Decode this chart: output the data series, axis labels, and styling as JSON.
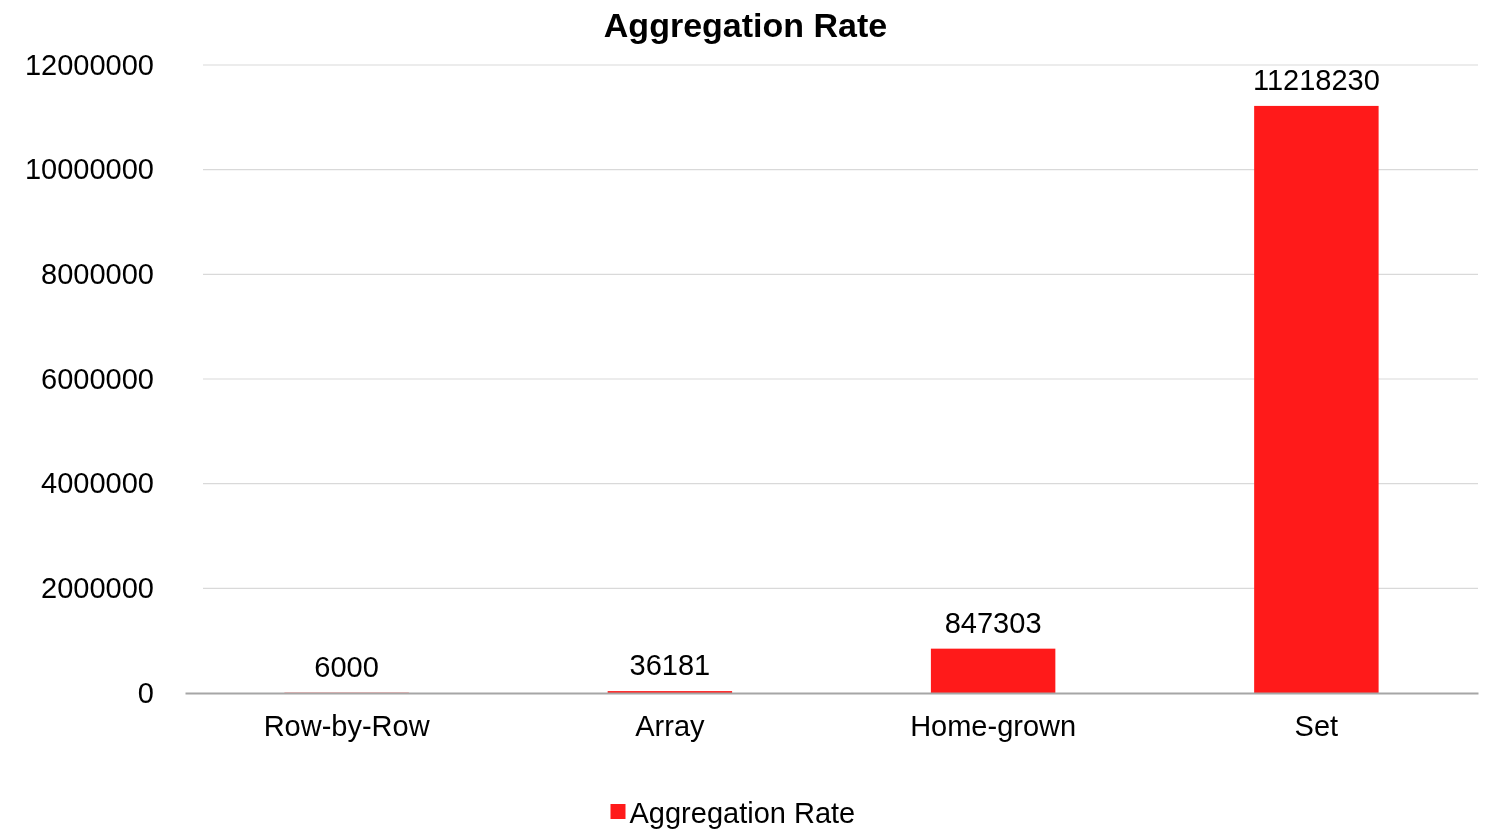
{
  "chart_data": {
    "type": "bar",
    "title": "Aggregation Rate",
    "categories": [
      "Row-by-Row",
      "Array",
      "Home-grown",
      "Set"
    ],
    "series": [
      {
        "name": "Aggregation Rate",
        "color": "#ff1a1a",
        "values": [
          6000,
          36181,
          847303,
          11218230
        ]
      }
    ],
    "ylim": [
      0,
      12000000
    ],
    "yticks": [
      0,
      2000000,
      4000000,
      6000000,
      8000000,
      10000000,
      12000000
    ],
    "grid": "y",
    "legend": "bottom",
    "data_labels": true
  }
}
